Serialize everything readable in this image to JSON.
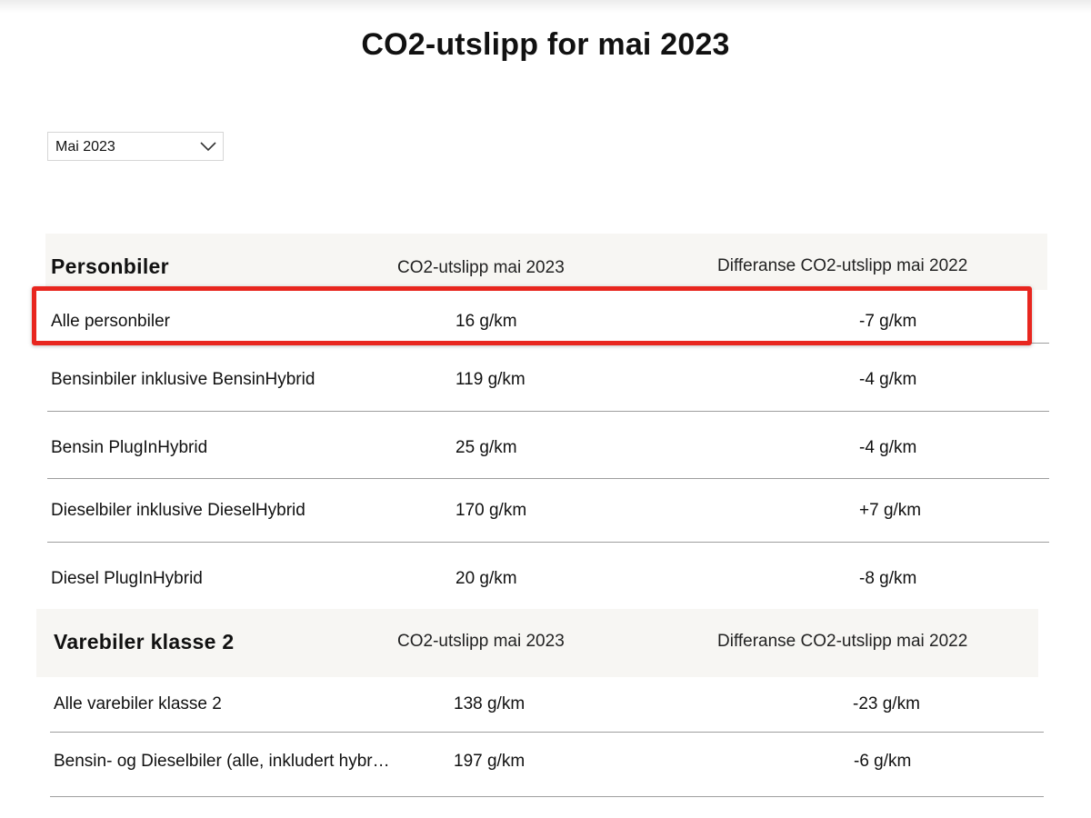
{
  "title": "CO2-utslipp for mai 2023",
  "month_filter": {
    "selected": "Mai 2023",
    "icon": "chevron-down-icon"
  },
  "sections": [
    {
      "title": "Personbiler",
      "col_value_label": "CO2-utslipp mai 2023",
      "col_diff_label": "Differanse CO2-utslipp mai 2022",
      "rows": [
        {
          "name": "Alle personbiler",
          "value": "16 g/km",
          "diff": "-7 g/km"
        },
        {
          "name": "Bensinbiler inklusive BensinHybrid",
          "value": "119 g/km",
          "diff": "-4 g/km"
        },
        {
          "name": "Bensin PlugInHybrid",
          "value": "25 g/km",
          "diff": "-4 g/km"
        },
        {
          "name": "Dieselbiler inklusive DieselHybrid",
          "value": "170 g/km",
          "diff": "+7 g/km"
        },
        {
          "name": "Diesel PlugInHybrid",
          "value": "20 g/km",
          "diff": "-8 g/km"
        }
      ]
    },
    {
      "title": "Varebiler klasse 2",
      "col_value_label": "CO2-utslipp mai 2023",
      "col_diff_label": "Differanse CO2-utslipp mai 2022",
      "rows": [
        {
          "name": "Alle varebiler klasse 2",
          "value": "138 g/km",
          "diff": "-23 g/km"
        },
        {
          "name": "Bensin- og Dieselbiler (alle, inkludert hybr…",
          "value": "197 g/km",
          "diff": "-6 g/km"
        }
      ]
    }
  ],
  "colors": {
    "highlight": "#e8261f",
    "header_bg": "#f7f6f3",
    "divider": "#9e9e9e"
  }
}
